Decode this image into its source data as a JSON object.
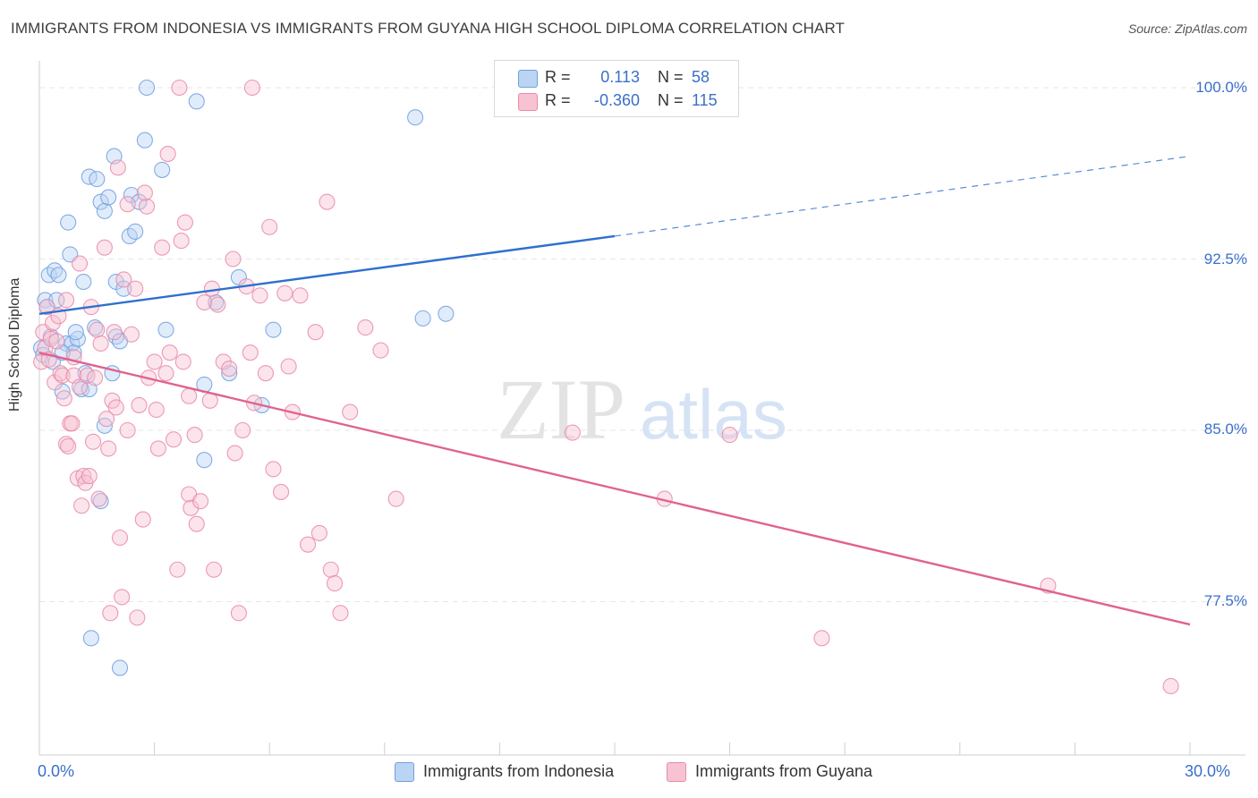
{
  "chart_data": {
    "type": "scatter",
    "title": "IMMIGRANTS FROM INDONESIA VS IMMIGRANTS FROM GUYANA HIGH SCHOOL DIPLOMA CORRELATION CHART",
    "source": "Source: ZipAtlas.com",
    "ylabel": "High School Diploma",
    "xlim": [
      0,
      30
    ],
    "ylim": [
      72.0,
      101.5
    ],
    "x_tick_labels": [
      "0.0%",
      "30.0%"
    ],
    "y_ticks": [
      77.5,
      85.0,
      92.5,
      100.0
    ],
    "y_tick_labels": [
      "77.5%",
      "85.0%",
      "92.5%",
      "100.0%"
    ],
    "watermark": [
      "ZIP",
      "atlas"
    ],
    "legend": {
      "rows": [
        {
          "r_label": "R =",
          "r_value": "0.113",
          "n_label": "N =",
          "n_value": "58"
        },
        {
          "r_label": "R =",
          "r_value": "-0.360",
          "n_label": "N =",
          "n_value": "115"
        }
      ]
    },
    "series": [
      {
        "name": "Immigrants from Indonesia",
        "color": "#6f9fe0",
        "fill": "#bcd4f4",
        "line_color": "#2f6fcf",
        "trend": {
          "x": [
            0,
            15.0
          ],
          "y": [
            90.1,
            93.5
          ],
          "dashed_to": [
            30,
            97.0
          ]
        },
        "points": [
          [
            0.05,
            88.6
          ],
          [
            0.1,
            88.3
          ],
          [
            0.15,
            90.7
          ],
          [
            0.2,
            90.4
          ],
          [
            0.25,
            91.8
          ],
          [
            0.3,
            89.1
          ],
          [
            0.35,
            88.0
          ],
          [
            0.4,
            92.0
          ],
          [
            0.5,
            91.8
          ],
          [
            0.6,
            86.7
          ],
          [
            0.7,
            88.8
          ],
          [
            0.75,
            94.1
          ],
          [
            0.8,
            92.7
          ],
          [
            0.85,
            88.8
          ],
          [
            0.9,
            88.4
          ],
          [
            1.0,
            89.0
          ],
          [
            1.1,
            86.8
          ],
          [
            1.15,
            91.5
          ],
          [
            1.2,
            87.5
          ],
          [
            1.3,
            86.8
          ],
          [
            1.3,
            96.1
          ],
          [
            1.45,
            89.5
          ],
          [
            1.5,
            96.0
          ],
          [
            1.6,
            81.9
          ],
          [
            1.6,
            95.0
          ],
          [
            1.7,
            85.2
          ],
          [
            1.7,
            94.6
          ],
          [
            1.8,
            95.2
          ],
          [
            1.95,
            97.0
          ],
          [
            2.0,
            91.5
          ],
          [
            2.0,
            89.1
          ],
          [
            2.1,
            88.9
          ],
          [
            2.2,
            91.2
          ],
          [
            2.35,
            93.5
          ],
          [
            2.4,
            95.3
          ],
          [
            2.5,
            93.7
          ],
          [
            2.6,
            95.0
          ],
          [
            2.75,
            97.7
          ],
          [
            2.8,
            100.0
          ],
          [
            3.2,
            96.4
          ],
          [
            3.3,
            89.4
          ],
          [
            4.1,
            99.4
          ],
          [
            4.3,
            87.0
          ],
          [
            4.3,
            83.7
          ],
          [
            4.6,
            90.6
          ],
          [
            4.95,
            87.5
          ],
          [
            5.2,
            91.7
          ],
          [
            5.8,
            86.1
          ],
          [
            6.1,
            89.4
          ],
          [
            9.8,
            98.7
          ],
          [
            10.0,
            89.9
          ],
          [
            10.6,
            90.1
          ],
          [
            1.35,
            75.9
          ],
          [
            2.1,
            74.6
          ],
          [
            0.6,
            88.4
          ],
          [
            0.95,
            89.3
          ],
          [
            1.9,
            87.5
          ],
          [
            0.45,
            90.7
          ]
        ]
      },
      {
        "name": "Immigrants from Guyana",
        "color": "#e98aa8",
        "fill": "#f7c3d3",
        "line_color": "#e0628e",
        "trend": {
          "x": [
            0,
            30
          ],
          "y": [
            88.4,
            76.5
          ]
        },
        "points": [
          [
            0.05,
            88.0
          ],
          [
            0.1,
            89.3
          ],
          [
            0.15,
            88.6
          ],
          [
            0.2,
            90.4
          ],
          [
            0.25,
            88.1
          ],
          [
            0.3,
            89.0
          ],
          [
            0.35,
            89.7
          ],
          [
            0.4,
            87.1
          ],
          [
            0.45,
            88.9
          ],
          [
            0.5,
            90.0
          ],
          [
            0.55,
            87.5
          ],
          [
            0.6,
            87.4
          ],
          [
            0.65,
            86.4
          ],
          [
            0.7,
            84.4
          ],
          [
            0.75,
            84.3
          ],
          [
            0.8,
            85.3
          ],
          [
            0.85,
            85.3
          ],
          [
            0.9,
            87.4
          ],
          [
            1.0,
            82.9
          ],
          [
            1.05,
            86.9
          ],
          [
            1.1,
            81.7
          ],
          [
            1.15,
            83.0
          ],
          [
            1.2,
            82.7
          ],
          [
            1.25,
            87.4
          ],
          [
            1.3,
            83.0
          ],
          [
            1.35,
            90.4
          ],
          [
            1.4,
            84.5
          ],
          [
            1.5,
            89.4
          ],
          [
            1.55,
            82.0
          ],
          [
            1.6,
            88.8
          ],
          [
            1.7,
            93.0
          ],
          [
            1.75,
            85.5
          ],
          [
            1.8,
            84.2
          ],
          [
            1.85,
            77.0
          ],
          [
            1.9,
            86.3
          ],
          [
            1.95,
            89.3
          ],
          [
            2.0,
            86.0
          ],
          [
            2.05,
            96.5
          ],
          [
            2.1,
            80.3
          ],
          [
            2.15,
            77.7
          ],
          [
            2.2,
            91.6
          ],
          [
            2.3,
            85.0
          ],
          [
            2.4,
            89.2
          ],
          [
            2.5,
            91.2
          ],
          [
            2.55,
            76.8
          ],
          [
            2.6,
            86.1
          ],
          [
            2.7,
            81.1
          ],
          [
            2.8,
            94.8
          ],
          [
            2.85,
            87.3
          ],
          [
            3.0,
            88.0
          ],
          [
            3.05,
            85.9
          ],
          [
            3.1,
            84.2
          ],
          [
            3.2,
            93.0
          ],
          [
            3.3,
            87.5
          ],
          [
            3.35,
            97.1
          ],
          [
            3.4,
            88.4
          ],
          [
            3.5,
            84.6
          ],
          [
            3.6,
            78.9
          ],
          [
            3.7,
            93.3
          ],
          [
            3.75,
            88.0
          ],
          [
            3.8,
            94.1
          ],
          [
            3.9,
            82.2
          ],
          [
            3.95,
            81.6
          ],
          [
            4.05,
            84.8
          ],
          [
            4.1,
            80.9
          ],
          [
            4.2,
            81.9
          ],
          [
            4.3,
            90.6
          ],
          [
            4.45,
            86.3
          ],
          [
            4.5,
            91.2
          ],
          [
            4.55,
            78.9
          ],
          [
            4.65,
            90.5
          ],
          [
            4.8,
            88.0
          ],
          [
            4.95,
            87.7
          ],
          [
            5.05,
            92.5
          ],
          [
            5.2,
            77.0
          ],
          [
            5.3,
            85.0
          ],
          [
            5.4,
            91.3
          ],
          [
            5.5,
            88.4
          ],
          [
            5.6,
            86.2
          ],
          [
            5.75,
            90.9
          ],
          [
            5.9,
            87.5
          ],
          [
            6.0,
            93.9
          ],
          [
            6.1,
            83.3
          ],
          [
            6.3,
            82.3
          ],
          [
            6.5,
            87.8
          ],
          [
            6.6,
            85.8
          ],
          [
            6.8,
            90.9
          ],
          [
            7.0,
            80.0
          ],
          [
            7.2,
            89.3
          ],
          [
            7.3,
            80.5
          ],
          [
            7.5,
            95.0
          ],
          [
            7.6,
            78.9
          ],
          [
            7.7,
            78.3
          ],
          [
            7.85,
            77.0
          ],
          [
            8.1,
            85.8
          ],
          [
            8.5,
            89.5
          ],
          [
            8.9,
            88.5
          ],
          [
            9.3,
            82.0
          ],
          [
            13.9,
            84.9
          ],
          [
            16.3,
            82.0
          ],
          [
            18.0,
            84.8
          ],
          [
            20.4,
            75.9
          ],
          [
            26.3,
            78.2
          ],
          [
            29.5,
            73.8
          ],
          [
            0.7,
            90.7
          ],
          [
            2.75,
            95.4
          ],
          [
            3.65,
            100.0
          ],
          [
            5.55,
            100.0
          ],
          [
            1.45,
            87.3
          ],
          [
            0.9,
            88.2
          ],
          [
            3.9,
            86.5
          ],
          [
            5.1,
            84.0
          ],
          [
            2.3,
            94.9
          ],
          [
            1.05,
            92.3
          ],
          [
            6.4,
            91.0
          ]
        ]
      }
    ]
  }
}
